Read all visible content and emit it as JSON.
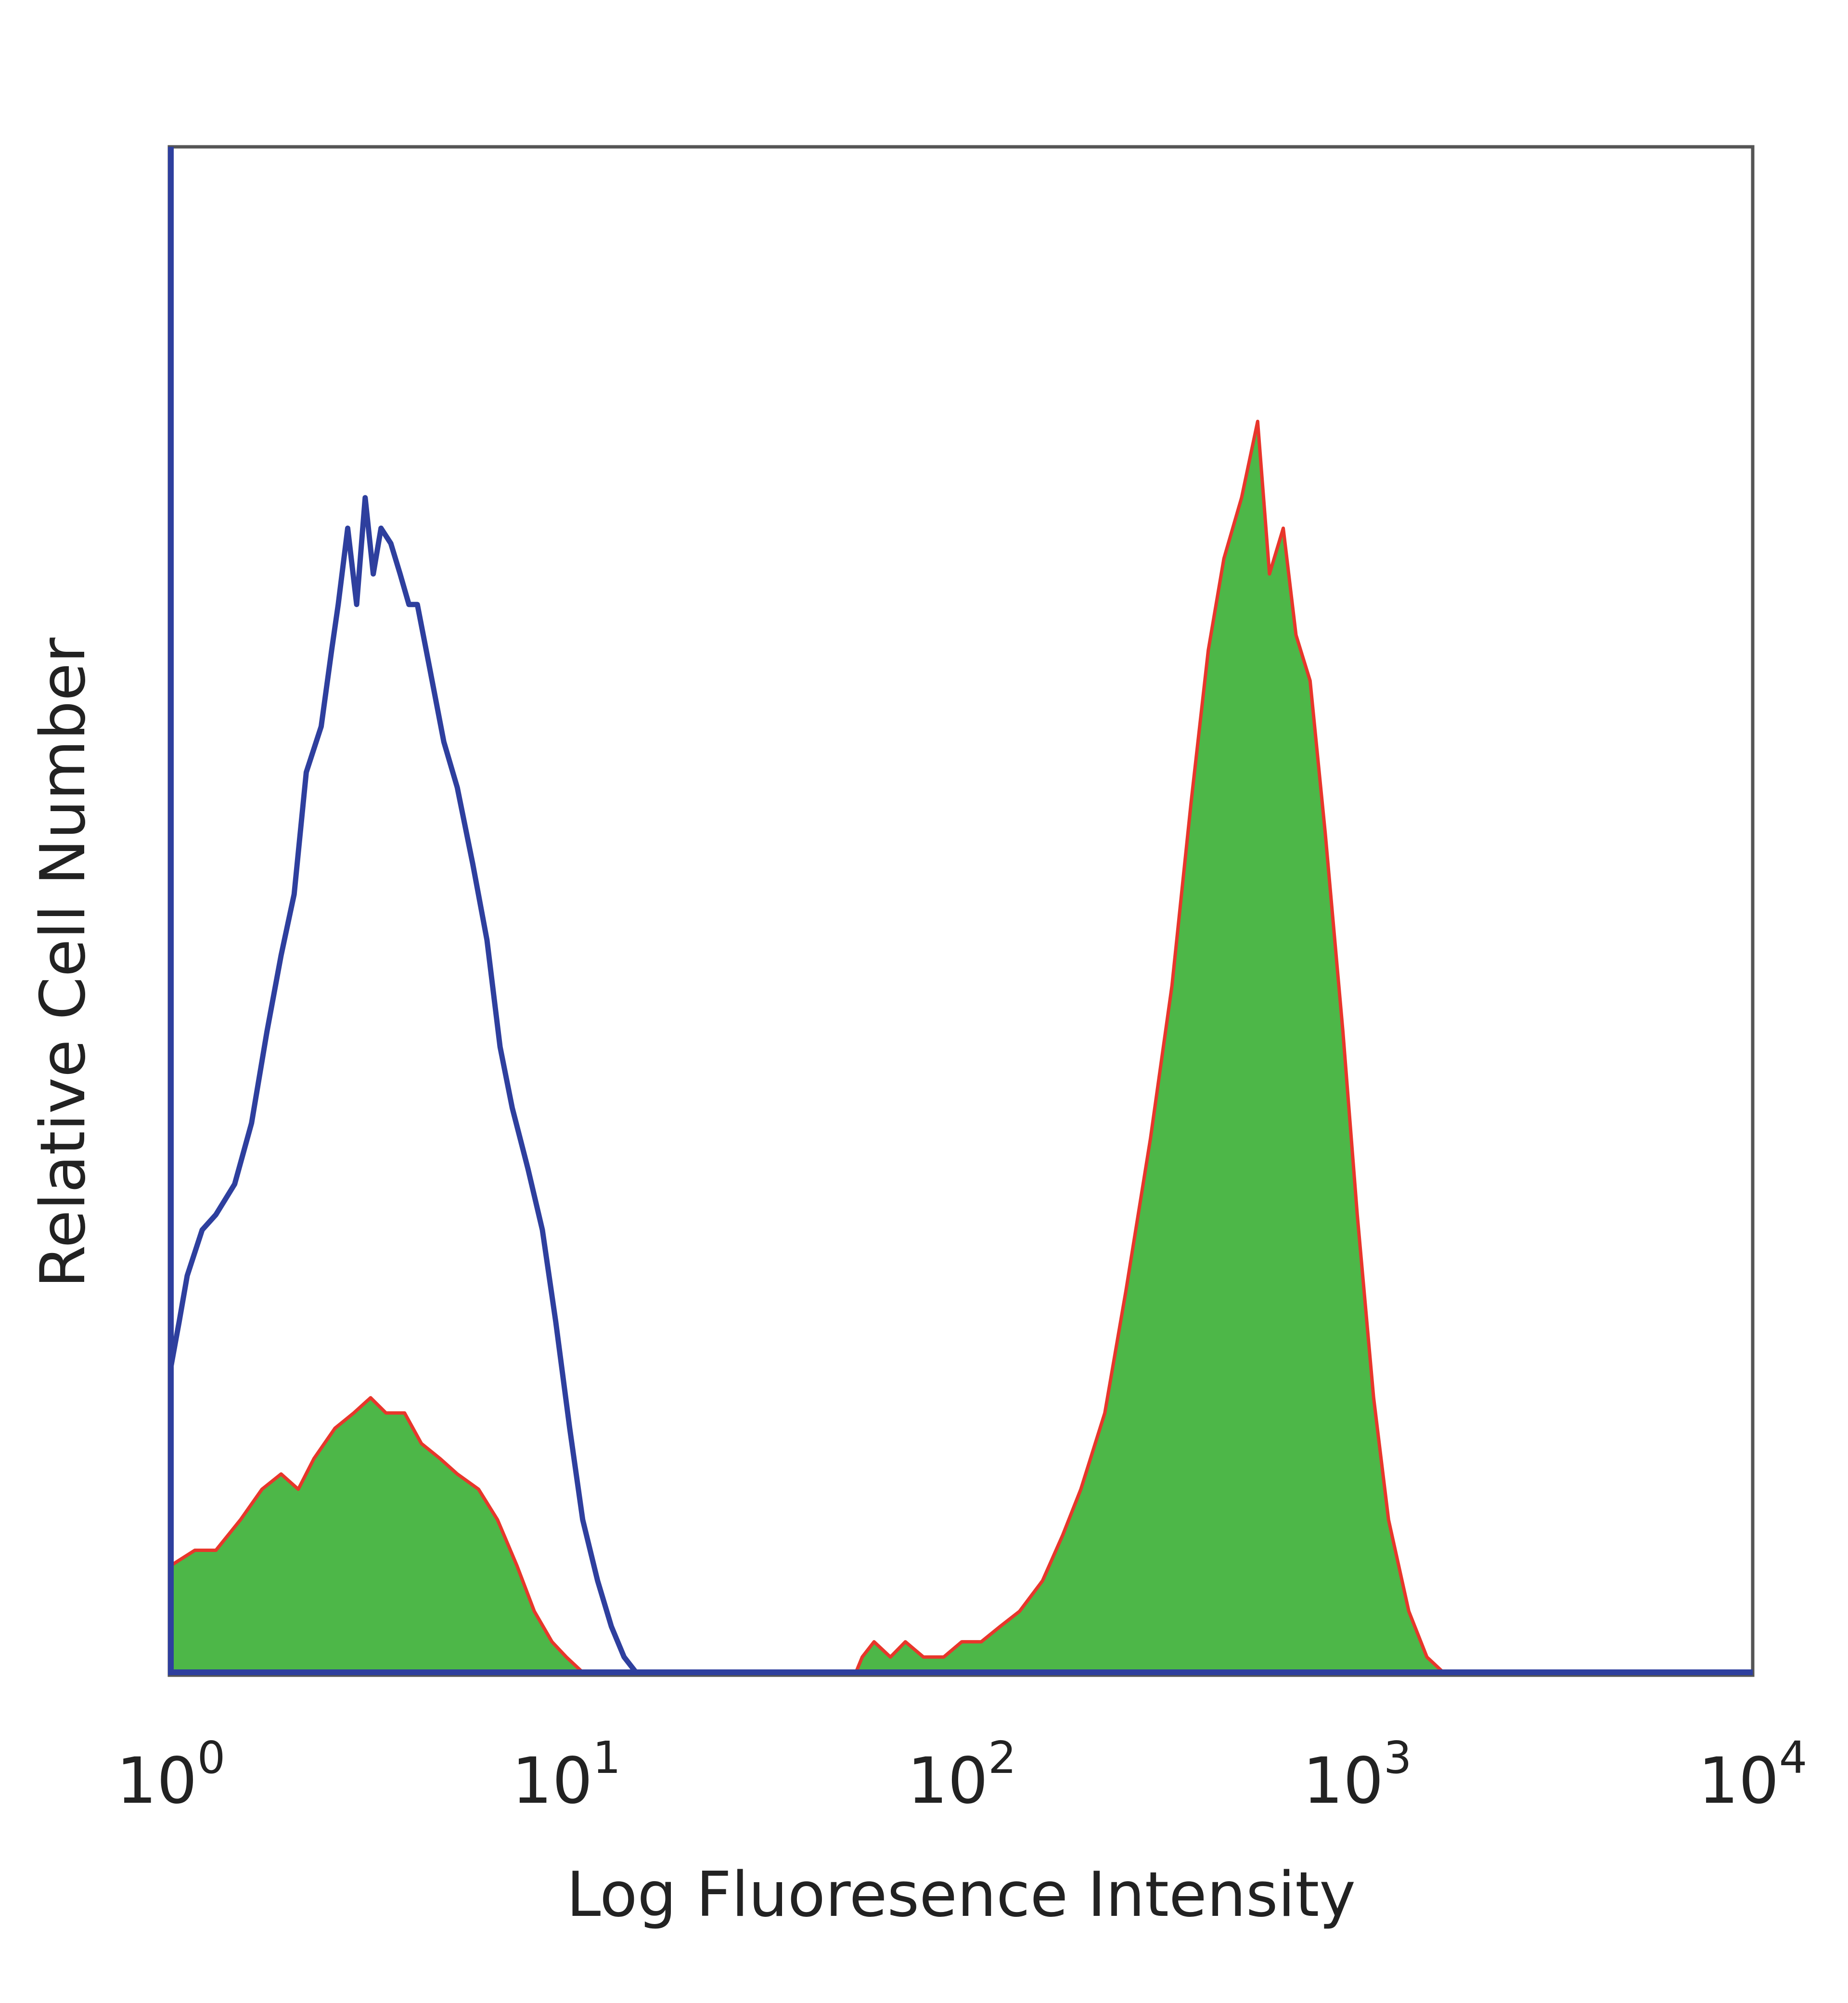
{
  "chart_data": {
    "type": "area",
    "title": "",
    "xlabel": "Log Fluoresence Intensity",
    "ylabel": "Relative Cell Number",
    "xscale": "log",
    "xlim": [
      1,
      10000
    ],
    "ylim": [
      0,
      100
    ],
    "grid": false,
    "legend": "none",
    "x_ticks": [
      {
        "value": 1,
        "base": "10",
        "exp": "0"
      },
      {
        "value": 10,
        "base": "10",
        "exp": "1"
      },
      {
        "value": 100,
        "base": "10",
        "exp": "2"
      },
      {
        "value": 1000,
        "base": "10",
        "exp": "3"
      },
      {
        "value": 10000,
        "base": "10",
        "exp": "4"
      }
    ],
    "series": [
      {
        "style": "line",
        "color": "#2e3f9e",
        "points": [
          [
            1.0,
            20
          ],
          [
            1.05,
            23
          ],
          [
            1.1,
            26
          ],
          [
            1.2,
            29
          ],
          [
            1.3,
            30
          ],
          [
            1.45,
            32
          ],
          [
            1.6,
            36
          ],
          [
            1.75,
            42
          ],
          [
            1.9,
            47
          ],
          [
            2.05,
            51
          ],
          [
            2.2,
            59
          ],
          [
            2.4,
            62
          ],
          [
            2.55,
            67
          ],
          [
            2.65,
            70
          ],
          [
            2.8,
            75
          ],
          [
            2.95,
            70
          ],
          [
            3.1,
            77
          ],
          [
            3.25,
            72
          ],
          [
            3.4,
            75
          ],
          [
            3.6,
            74
          ],
          [
            3.8,
            72
          ],
          [
            4.0,
            70
          ],
          [
            4.2,
            70
          ],
          [
            4.5,
            66
          ],
          [
            4.9,
            61
          ],
          [
            5.3,
            58
          ],
          [
            5.8,
            53
          ],
          [
            6.3,
            48
          ],
          [
            6.8,
            41
          ],
          [
            7.3,
            37
          ],
          [
            8.0,
            33
          ],
          [
            8.7,
            29
          ],
          [
            9.4,
            23
          ],
          [
            10.2,
            16
          ],
          [
            11.0,
            10
          ],
          [
            12.0,
            6
          ],
          [
            13.0,
            3
          ],
          [
            14.0,
            1
          ],
          [
            15.0,
            0
          ]
        ]
      },
      {
        "style": "filled",
        "fill": "#4db748",
        "stroke": "#e8362b",
        "points": [
          [
            1.0,
            7
          ],
          [
            1.15,
            8
          ],
          [
            1.3,
            8
          ],
          [
            1.5,
            10
          ],
          [
            1.7,
            12
          ],
          [
            1.9,
            13
          ],
          [
            2.1,
            12
          ],
          [
            2.3,
            14
          ],
          [
            2.6,
            16
          ],
          [
            2.9,
            17
          ],
          [
            3.2,
            18
          ],
          [
            3.5,
            17
          ],
          [
            3.9,
            17
          ],
          [
            4.3,
            15
          ],
          [
            4.8,
            14
          ],
          [
            5.3,
            13
          ],
          [
            6.0,
            12
          ],
          [
            6.7,
            10
          ],
          [
            7.5,
            7
          ],
          [
            8.3,
            4
          ],
          [
            9.2,
            2
          ],
          [
            10.0,
            1
          ],
          [
            11.0,
            0
          ],
          [
            54,
            0
          ],
          [
            56,
            1
          ],
          [
            60,
            2
          ],
          [
            66,
            1
          ],
          [
            72,
            2
          ],
          [
            80,
            1
          ],
          [
            90,
            1
          ],
          [
            100,
            2
          ],
          [
            112,
            2
          ],
          [
            125,
            3
          ],
          [
            140,
            4
          ],
          [
            160,
            6
          ],
          [
            180,
            9
          ],
          [
            200,
            12
          ],
          [
            230,
            17
          ],
          [
            260,
            25
          ],
          [
            300,
            35
          ],
          [
            340,
            45
          ],
          [
            380,
            57
          ],
          [
            420,
            67
          ],
          [
            460,
            73
          ],
          [
            510,
            77
          ],
          [
            560,
            82
          ],
          [
            600,
            72
          ],
          [
            650,
            75
          ],
          [
            700,
            68
          ],
          [
            760,
            65
          ],
          [
            830,
            55
          ],
          [
            920,
            42
          ],
          [
            1000,
            30
          ],
          [
            1100,
            18
          ],
          [
            1200,
            10
          ],
          [
            1350,
            4
          ],
          [
            1500,
            1
          ],
          [
            1650,
            0
          ]
        ]
      }
    ]
  }
}
